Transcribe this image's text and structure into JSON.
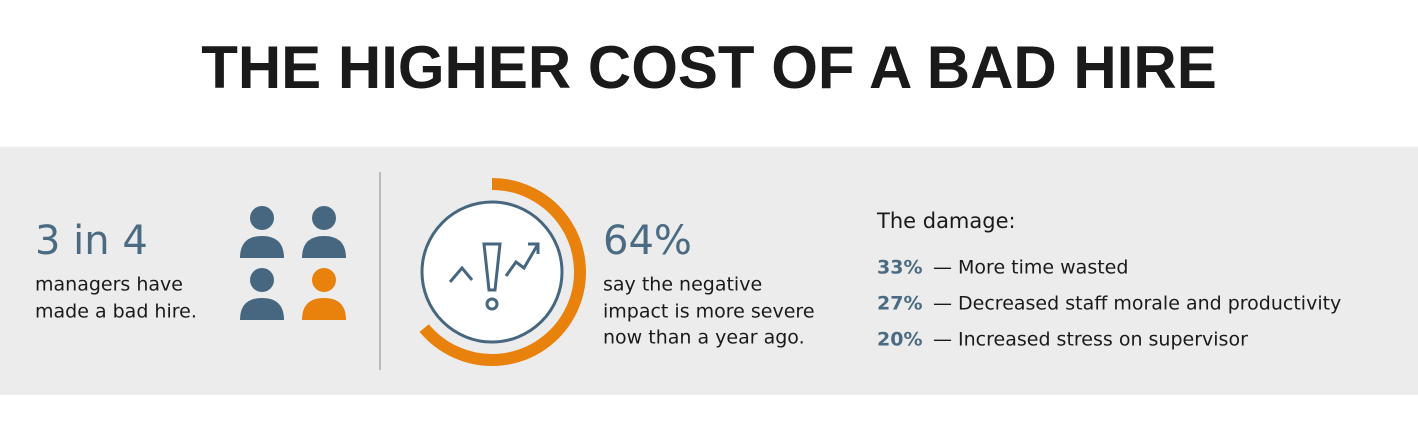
{
  "title": "THE HIGHER COST OF A BAD HIRE",
  "stat1": {
    "headline": "3 in 4",
    "lines": [
      "managers have",
      "made a bad hire."
    ]
  },
  "stat2": {
    "value": 64,
    "label": "64%",
    "lines": [
      "say the negative",
      "impact is more severe",
      "now than a year ago."
    ]
  },
  "damage": {
    "heading": "The damage:",
    "items": [
      {
        "pct": "33%",
        "text": "— More time wasted"
      },
      {
        "pct": "27%",
        "text": "— Decreased staff morale and productivity"
      },
      {
        "pct": "20%",
        "text": "— Increased stress on supervisor"
      }
    ]
  }
}
